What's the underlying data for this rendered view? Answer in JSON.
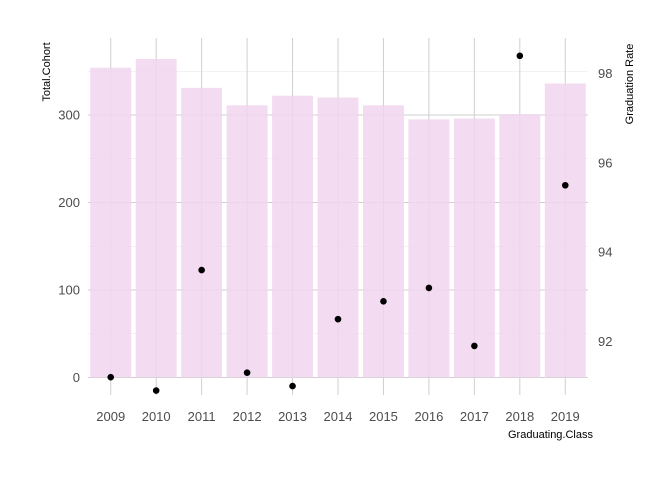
{
  "chart_data": {
    "type": "bar",
    "x_title": "Graduating.Class",
    "y_left_title": "Total.Cohort",
    "y_right_title": "Graduation Rate",
    "categories": [
      "2009",
      "2010",
      "2011",
      "2012",
      "2013",
      "2014",
      "2015",
      "2016",
      "2017",
      "2018",
      "2019"
    ],
    "series": [
      {
        "kind": "bar",
        "axis": "left",
        "values": [
          354,
          364,
          331,
          311,
          322,
          320,
          311,
          295,
          296,
          301,
          336
        ]
      },
      {
        "kind": "point",
        "axis": "right",
        "values": [
          91.2,
          90.9,
          93.6,
          91.3,
          91.0,
          92.5,
          92.9,
          93.2,
          91.9,
          98.4,
          95.5
        ]
      }
    ],
    "y_left_ticks": [
      0,
      100,
      200,
      300
    ],
    "y_right_ticks": [
      92,
      94,
      96,
      98
    ],
    "y_left_range": [
      -20,
      388
    ],
    "y_right_range": [
      90.8,
      98.8
    ],
    "bar_color": "#f1d5f0",
    "point_color": "#000000",
    "grid": true
  }
}
